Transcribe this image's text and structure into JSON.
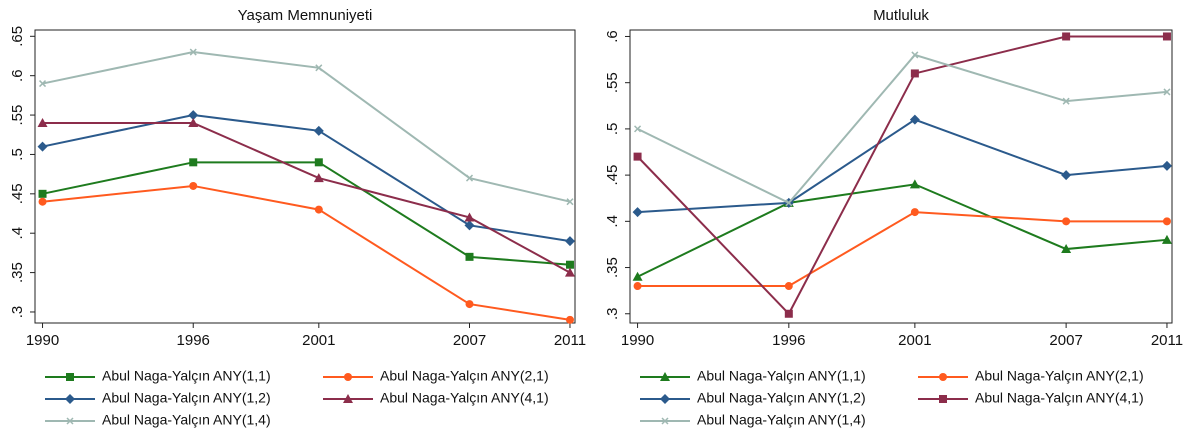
{
  "chart_data": [
    {
      "type": "line",
      "title": "Yaşam Memnuniyeti",
      "x": [
        1990,
        1996,
        2001,
        2007,
        2011
      ],
      "xlim": [
        1989.7,
        2011.2
      ],
      "xticks": [
        1990,
        1996,
        2001,
        2007,
        2011
      ],
      "ylim": [
        0.286,
        0.658
      ],
      "yticks": [
        {
          "value": 0.3,
          "label": ".3"
        },
        {
          "value": 0.35,
          "label": ".35"
        },
        {
          "value": 0.4,
          "label": ".4"
        },
        {
          "value": 0.45,
          "label": ".45"
        },
        {
          "value": 0.5,
          "label": ".5"
        },
        {
          "value": 0.55,
          "label": ".55"
        },
        {
          "value": 0.6,
          "label": ".6"
        },
        {
          "value": 0.65,
          "label": ".65"
        }
      ],
      "grid": false,
      "series": [
        {
          "name": "Abul Naga-Yalçın ANY(1,1)",
          "color": "#1e7b1e",
          "marker": "square",
          "values": [
            0.45,
            0.49,
            0.49,
            0.37,
            0.36
          ]
        },
        {
          "name": "Abul Naga-Yalçın ANY(2,1)",
          "color": "#ff5a1f",
          "marker": "circle",
          "values": [
            0.44,
            0.46,
            0.43,
            0.31,
            0.29
          ]
        },
        {
          "name": "Abul Naga-Yalçın ANY(1,2)",
          "color": "#2b5a8c",
          "marker": "diamond",
          "values": [
            0.51,
            0.55,
            0.53,
            0.41,
            0.39
          ]
        },
        {
          "name": "Abul Naga-Yalçın ANY(4,1)",
          "color": "#8c2d4b",
          "marker": "triangle",
          "values": [
            0.54,
            0.54,
            0.47,
            0.42,
            0.35
          ]
        },
        {
          "name": "Abul Naga-Yalçın ANY(1,4)",
          "color": "#9fb8b2",
          "marker": "x",
          "values": [
            0.59,
            0.63,
            0.61,
            0.47,
            0.44
          ]
        }
      ]
    },
    {
      "type": "line",
      "title": "Mutluluk",
      "x": [
        1990,
        1996,
        2001,
        2007,
        2011
      ],
      "xlim": [
        1989.7,
        2011.2
      ],
      "xticks": [
        1990,
        1996,
        2001,
        2007,
        2011
      ],
      "ylim": [
        0.29,
        0.607
      ],
      "yticks": [
        {
          "value": 0.3,
          "label": ".3"
        },
        {
          "value": 0.35,
          "label": ".35"
        },
        {
          "value": 0.4,
          "label": ".4"
        },
        {
          "value": 0.45,
          "label": ".45"
        },
        {
          "value": 0.5,
          "label": ".5"
        },
        {
          "value": 0.55,
          "label": ".55"
        },
        {
          "value": 0.6,
          "label": ".6"
        }
      ],
      "grid": false,
      "series": [
        {
          "name": "Abul Naga-Yalçın ANY(1,1)",
          "color": "#1e7b1e",
          "marker": "triangle",
          "values": [
            0.34,
            0.42,
            0.44,
            0.37,
            0.38
          ]
        },
        {
          "name": "Abul Naga-Yalçın ANY(2,1)",
          "color": "#ff5a1f",
          "marker": "circle",
          "values": [
            0.33,
            0.33,
            0.41,
            0.4,
            0.4
          ]
        },
        {
          "name": "Abul Naga-Yalçın ANY(1,2)",
          "color": "#2b5a8c",
          "marker": "diamond",
          "values": [
            0.41,
            0.42,
            0.51,
            0.45,
            0.46
          ]
        },
        {
          "name": "Abul Naga-Yalçın ANY(4,1)",
          "color": "#8c2d4b",
          "marker": "square",
          "values": [
            0.47,
            0.3,
            0.56,
            0.6,
            0.6
          ]
        },
        {
          "name": "Abul Naga-Yalçın ANY(1,4)",
          "color": "#9fb8b2",
          "marker": "x",
          "values": [
            0.5,
            0.42,
            0.58,
            0.53,
            0.54
          ]
        }
      ]
    }
  ]
}
